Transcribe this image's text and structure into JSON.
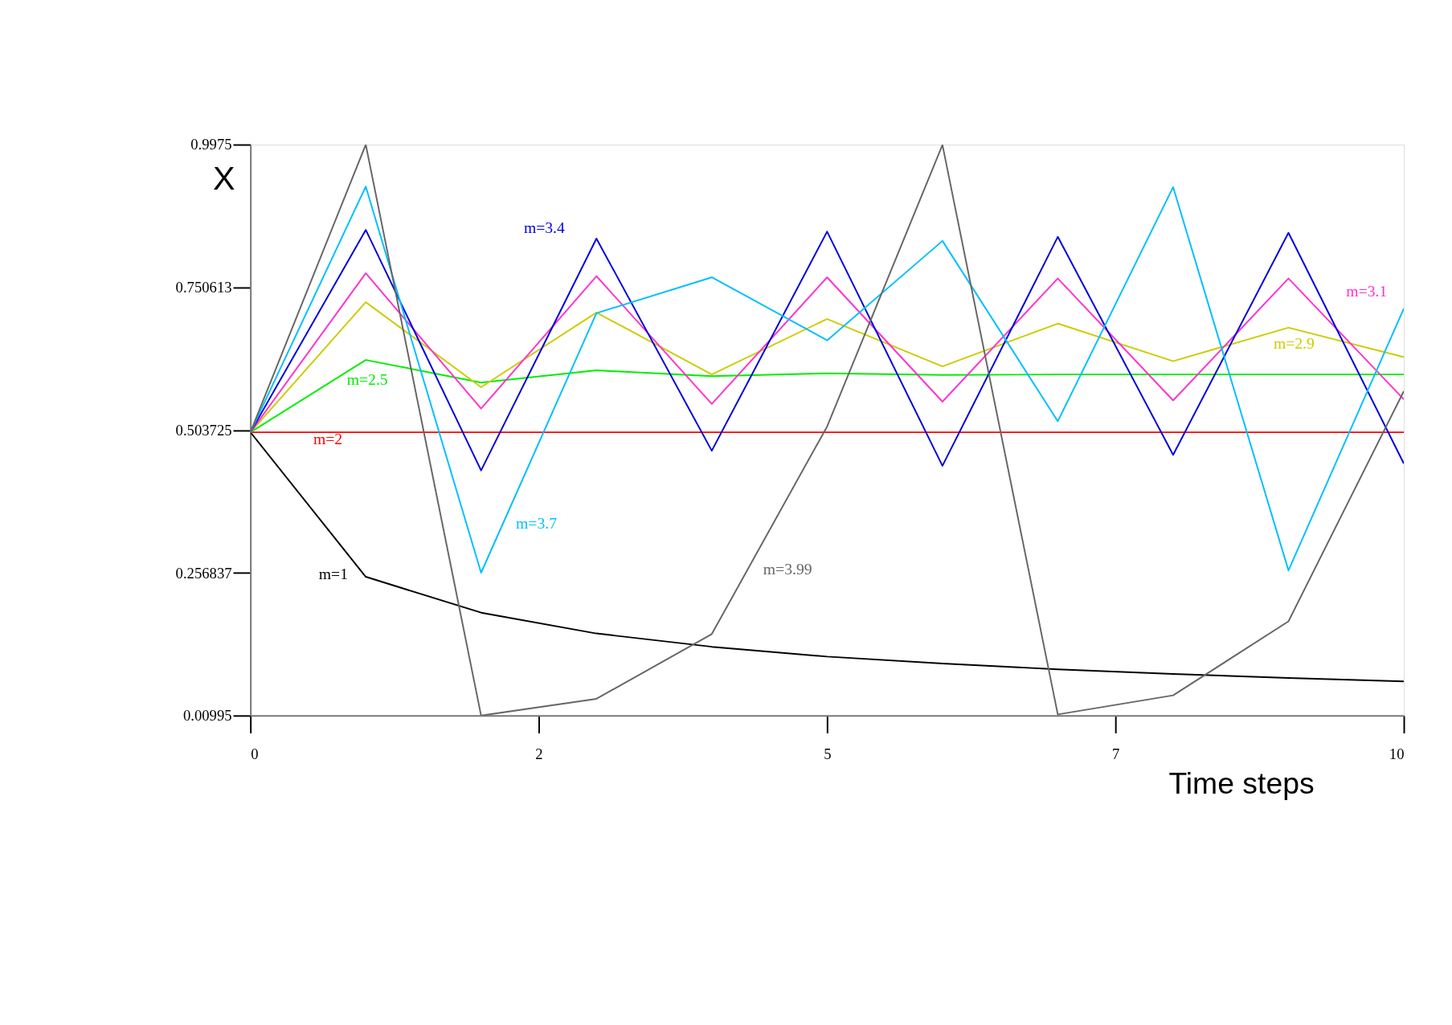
{
  "chart_data": {
    "type": "line",
    "xlabel": "Time steps",
    "ylabel": "X",
    "x": [
      0,
      1,
      2,
      3,
      4,
      5,
      6,
      7,
      8,
      9,
      10
    ],
    "xlim": [
      0,
      10
    ],
    "ylim": [
      0.00995,
      0.9975
    ],
    "xticks": [
      {
        "value": 0,
        "label": "0"
      },
      {
        "value": 2.5,
        "label": "2"
      },
      {
        "value": 5,
        "label": "5"
      },
      {
        "value": 7.5,
        "label": "7"
      },
      {
        "value": 10,
        "label": "10"
      }
    ],
    "yticks": [
      0.00995,
      0.256837,
      0.503725,
      0.750613,
      0.9975
    ],
    "grid": false,
    "legend": false,
    "marker": "none",
    "line_style": "solid",
    "series": [
      {
        "name": "m=1",
        "color": "#000000",
        "values": [
          0.5,
          0.25,
          0.188,
          0.152,
          0.129,
          0.112,
          0.1,
          0.09,
          0.082,
          0.075,
          0.069
        ]
      },
      {
        "name": "m=2",
        "color": "#ff0000",
        "values": [
          0.5,
          0.5,
          0.5,
          0.5,
          0.5,
          0.5,
          0.5,
          0.5,
          0.5,
          0.5,
          0.5
        ]
      },
      {
        "name": "m=2.5",
        "color": "#00ee00",
        "values": [
          0.5,
          0.625,
          0.586,
          0.607,
          0.597,
          0.602,
          0.599,
          0.6,
          0.6,
          0.6,
          0.6
        ]
      },
      {
        "name": "m=2.9",
        "color": "#cccc00",
        "values": [
          0.5,
          0.725,
          0.578,
          0.707,
          0.6,
          0.696,
          0.614,
          0.688,
          0.623,
          0.681,
          0.63
        ]
      },
      {
        "name": "m=3.1",
        "color": "#ff33cc",
        "values": [
          0.5,
          0.775,
          0.541,
          0.77,
          0.549,
          0.768,
          0.553,
          0.766,
          0.555,
          0.766,
          0.557
        ]
      },
      {
        "name": "m=3.4",
        "color": "#0000dd",
        "values": [
          0.5,
          0.85,
          0.434,
          0.835,
          0.468,
          0.847,
          0.442,
          0.838,
          0.461,
          0.845,
          0.446
        ]
      },
      {
        "name": "m=3.7",
        "color": "#00bfff",
        "values": [
          0.5,
          0.925,
          0.257,
          0.706,
          0.768,
          0.659,
          0.831,
          0.519,
          0.924,
          0.261,
          0.714
        ]
      },
      {
        "name": "m=3.99",
        "color": "#666666",
        "values": [
          0.5,
          0.9975,
          0.00995,
          0.039,
          0.151,
          0.51,
          0.997,
          0.012,
          0.045,
          0.173,
          0.571
        ]
      }
    ]
  }
}
